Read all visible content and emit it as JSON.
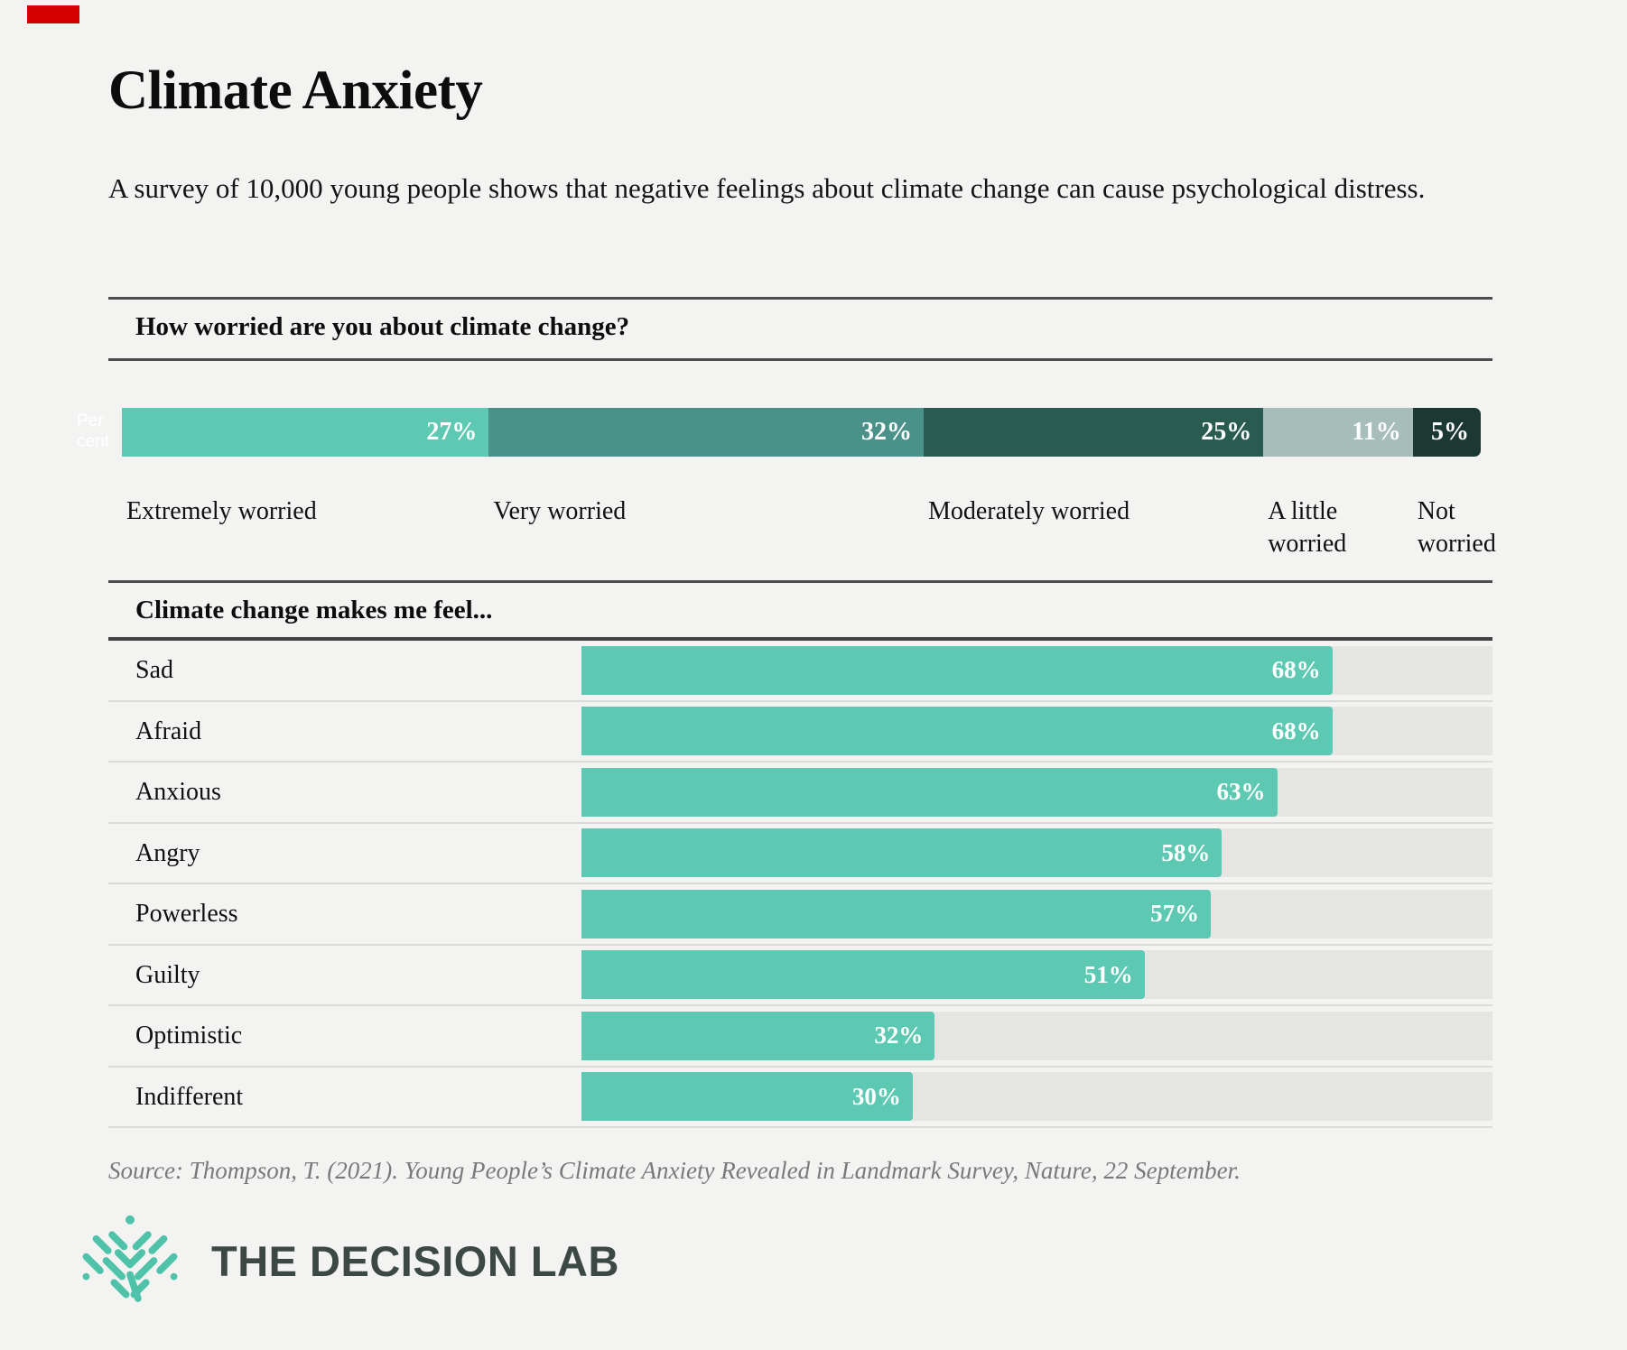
{
  "page": {
    "title": "Climate Anxiety",
    "subtitle": "A survey of 10,000 young people shows that negative feelings about climate change can cause psychological distress.",
    "source": "Source: Thompson, T. (2021). Young People’s Climate Anxiety Revealed in Landmark Survey, Nature, 22 September.",
    "logo_text": "THE DECISION LAB",
    "background": "#f3f4f2",
    "accent_teal": "#5dc9b2",
    "logo_teal": "#4fc2aa",
    "logo_slate": "#3b4845",
    "marker_red": "#d40000"
  },
  "chart_data": [
    {
      "type": "bar",
      "subtype": "horizontal-stacked",
      "title": "How worried are you about climate change?",
      "unit": "Per cent",
      "categories": [
        "Extremely worried",
        "Very worried",
        "Moderately worried",
        "A little worried",
        "Not worried"
      ],
      "values": [
        27,
        32,
        25,
        11,
        5
      ],
      "value_labels": [
        "27%",
        "32%",
        "25%",
        "11%",
        "5%"
      ],
      "colors": [
        "#5dc9b2",
        "#4a918a",
        "#2a5b50",
        "#a6bdb9",
        "#1c3833"
      ],
      "xlim": [
        0,
        100
      ],
      "legend_position": "below-bar",
      "grid": false
    },
    {
      "type": "bar",
      "subtype": "horizontal",
      "title": "Climate change makes me feel...",
      "categories": [
        "Sad",
        "Afraid",
        "Anxious",
        "Angry",
        "Powerless",
        "Guilty",
        "Optimistic",
        "Indifferent"
      ],
      "values": [
        68,
        68,
        63,
        58,
        57,
        51,
        32,
        30
      ],
      "value_labels": [
        "68%",
        "68%",
        "63%",
        "58%",
        "57%",
        "51%",
        "32%",
        "30%"
      ],
      "bar_color": "#5dc9b2",
      "track_color": "#e5e6e3",
      "xlim": [
        0,
        82.5
      ],
      "grid": false
    }
  ]
}
